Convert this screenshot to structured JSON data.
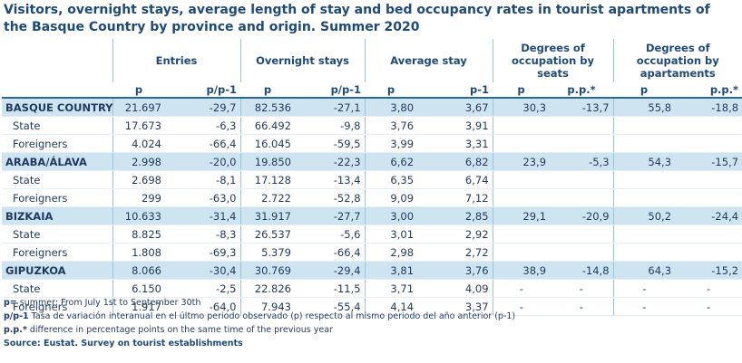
{
  "title": "Visitors, overnight stays, average length of stay and bed occupancy rates in tourist apartments of the Basque Country by province and origin. Summer 2020",
  "groups": {
    "entries": "Entries",
    "overnight": "Overnight stays",
    "avg_stay": "Average stay",
    "seats": "Degrees of occupation by seats",
    "apartments": "Degrees of occupation by apartaments"
  },
  "subheaders": {
    "entries_p": "p",
    "entries_var": "p/p-1",
    "overnight_p": "p",
    "overnight_var": "p/p-1",
    "avg_p": "p",
    "avg_prev": "p-1",
    "seats_p": "p",
    "seats_pp": "p.p.*",
    "apt_p": "p",
    "apt_pp": "p.p.*"
  },
  "rows": [
    {
      "label": "BASQUE COUNTRY",
      "type": "prov",
      "v": [
        "21.697",
        "-29,7",
        "82.536",
        "-27,1",
        "3,80",
        "3,67",
        "30,3",
        "-13,7",
        "55,8",
        "-18,8"
      ]
    },
    {
      "label": "State",
      "type": "sub",
      "v": [
        "17.673",
        "-6,3",
        "66.492",
        "-9,8",
        "3,76",
        "3,91",
        "",
        "",
        "",
        ""
      ]
    },
    {
      "label": "Foreigners",
      "type": "sub",
      "v": [
        "4.024",
        "-66,4",
        "16.045",
        "-59,5",
        "3,99",
        "3,31",
        "",
        "",
        "",
        ""
      ]
    },
    {
      "label": "ARABA/ÁLAVA",
      "type": "prov",
      "v": [
        "2.998",
        "-20,0",
        "19.850",
        "-22,3",
        "6,62",
        "6,82",
        "23,9",
        "-5,3",
        "54,3",
        "-15,7"
      ]
    },
    {
      "label": "State",
      "type": "sub",
      "v": [
        "2.698",
        "-8,1",
        "17.128",
        "-13,4",
        "6,35",
        "6,74",
        "",
        "",
        "",
        ""
      ]
    },
    {
      "label": "Foreigners",
      "type": "sub",
      "v": [
        "299",
        "-63,0",
        "2.722",
        "-52,8",
        "9,09",
        "7,12",
        "",
        "",
        "",
        ""
      ]
    },
    {
      "label": "BIZKAIA",
      "type": "prov",
      "v": [
        "10.633",
        "-31,4",
        "31.917",
        "-27,7",
        "3,00",
        "2,85",
        "29,1",
        "-20,9",
        "50,2",
        "-24,4"
      ]
    },
    {
      "label": "State",
      "type": "sub",
      "v": [
        "8.825",
        "-8,3",
        "26.537",
        "-5,6",
        "3,01",
        "2,92",
        "",
        "",
        "",
        ""
      ]
    },
    {
      "label": "Foreigners",
      "type": "sub",
      "v": [
        "1.808",
        "-69,3",
        "5.379",
        "-66,4",
        "2,98",
        "2,72",
        "",
        "",
        "",
        ""
      ]
    },
    {
      "label": "GIPUZKOA",
      "type": "prov",
      "v": [
        "8.066",
        "-30,4",
        "30.769",
        "-29,4",
        "3,81",
        "3,76",
        "38,9",
        "-14,8",
        "64,3",
        "-15,2"
      ]
    },
    {
      "label": "State",
      "type": "sub",
      "v": [
        "6.150",
        "-2,5",
        "22.826",
        "-11,5",
        "3,71",
        "4,09",
        "-",
        "-",
        "-",
        "-"
      ]
    },
    {
      "label": "Foreigners",
      "type": "sub",
      "v": [
        "1.917",
        "-64,0",
        "7.943",
        "-55,4",
        "4,14",
        "3,37",
        "-",
        "-",
        "-",
        "-"
      ]
    }
  ],
  "notes": {
    "n1_key": "p=",
    "n1_text": " summer: From July 1st to September 30th",
    "n2_key": "p/p-1",
    "n2_text": "  Tasa de variación interanual en el últmo periodo observado (p) respecto al mismo periodo del año anterior (p-1)",
    "n3_key": "p.p.*",
    "n3_text": "  difference in percentage points on the same time of the previous year",
    "source": "Source: Eustat. Survey on tourist establishments"
  }
}
